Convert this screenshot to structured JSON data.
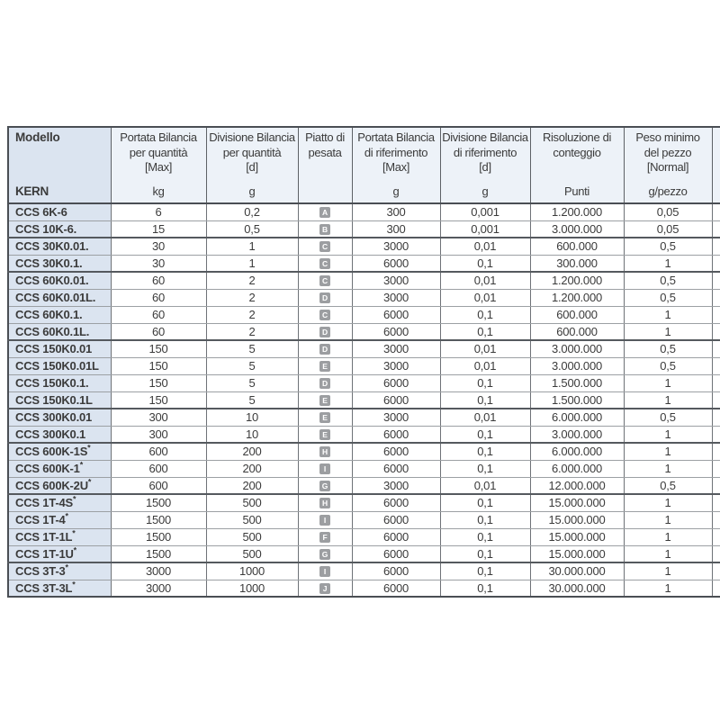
{
  "table": {
    "columns": [
      {
        "key": "modello",
        "title_lines": [
          "Modello"
        ],
        "unit": "KERN"
      },
      {
        "key": "portata-quantita",
        "title_lines": [
          "Portata Bilancia",
          "per quantità",
          "[Max]"
        ],
        "unit": "kg"
      },
      {
        "key": "divisione-quantita",
        "title_lines": [
          "Divisione Bilancia",
          "per quantità",
          "[d]"
        ],
        "unit": "g"
      },
      {
        "key": "piatto-pesata",
        "title_lines": [
          "Piatto di",
          "pesata"
        ],
        "unit": ""
      },
      {
        "key": "portata-riferimento",
        "title_lines": [
          "Portata Bilancia",
          "di riferimento",
          "[Max]"
        ],
        "unit": "g"
      },
      {
        "key": "divisione-riferimento",
        "title_lines": [
          "Divisione Bilancia",
          "di riferimento",
          "[d]"
        ],
        "unit": "g"
      },
      {
        "key": "risoluzione-conteggio",
        "title_lines": [
          "Risoluzione di",
          "conteggio"
        ],
        "unit": "Punti"
      },
      {
        "key": "peso-minimo",
        "title_lines": [
          "Peso minimo",
          "del pezzo",
          "[Normal]"
        ],
        "unit": "g/pezzo"
      }
    ],
    "rows": [
      {
        "model": "CCS 6K-6",
        "capacity_kg": "6",
        "division_g": "0,2",
        "plate": "A",
        "ref_capacity_g": "300",
        "ref_division_g": "0,001",
        "counting_resolution": "1.200.000",
        "min_piece_weight": "0,05",
        "group_end": false
      },
      {
        "model": "CCS 10K-6.",
        "capacity_kg": "15",
        "division_g": "0,5",
        "plate": "B",
        "ref_capacity_g": "300",
        "ref_division_g": "0,001",
        "counting_resolution": "3.000.000",
        "min_piece_weight": "0,05",
        "group_end": true
      },
      {
        "model": "CCS 30K0.01.",
        "capacity_kg": "30",
        "division_g": "1",
        "plate": "C",
        "ref_capacity_g": "3000",
        "ref_division_g": "0,01",
        "counting_resolution": "600.000",
        "min_piece_weight": "0,5",
        "group_end": false
      },
      {
        "model": "CCS 30K0.1.",
        "capacity_kg": "30",
        "division_g": "1",
        "plate": "C",
        "ref_capacity_g": "6000",
        "ref_division_g": "0,1",
        "counting_resolution": "300.000",
        "min_piece_weight": "1",
        "group_end": true
      },
      {
        "model": "CCS 60K0.01.",
        "capacity_kg": "60",
        "division_g": "2",
        "plate": "C",
        "ref_capacity_g": "3000",
        "ref_division_g": "0,01",
        "counting_resolution": "1.200.000",
        "min_piece_weight": "0,5",
        "group_end": false
      },
      {
        "model": "CCS 60K0.01L.",
        "capacity_kg": "60",
        "division_g": "2",
        "plate": "D",
        "ref_capacity_g": "3000",
        "ref_division_g": "0,01",
        "counting_resolution": "1.200.000",
        "min_piece_weight": "0,5",
        "group_end": false
      },
      {
        "model": "CCS 60K0.1.",
        "capacity_kg": "60",
        "division_g": "2",
        "plate": "C",
        "ref_capacity_g": "6000",
        "ref_division_g": "0,1",
        "counting_resolution": "600.000",
        "min_piece_weight": "1",
        "group_end": false
      },
      {
        "model": "CCS 60K0.1L.",
        "capacity_kg": "60",
        "division_g": "2",
        "plate": "D",
        "ref_capacity_g": "6000",
        "ref_division_g": "0,1",
        "counting_resolution": "600.000",
        "min_piece_weight": "1",
        "group_end": true
      },
      {
        "model": "CCS 150K0.01",
        "capacity_kg": "150",
        "division_g": "5",
        "plate": "D",
        "ref_capacity_g": "3000",
        "ref_division_g": "0,01",
        "counting_resolution": "3.000.000",
        "min_piece_weight": "0,5",
        "group_end": false
      },
      {
        "model": "CCS 150K0.01L",
        "capacity_kg": "150",
        "division_g": "5",
        "plate": "E",
        "ref_capacity_g": "3000",
        "ref_division_g": "0,01",
        "counting_resolution": "3.000.000",
        "min_piece_weight": "0,5",
        "group_end": false
      },
      {
        "model": "CCS 150K0.1.",
        "capacity_kg": "150",
        "division_g": "5",
        "plate": "D",
        "ref_capacity_g": "6000",
        "ref_division_g": "0,1",
        "counting_resolution": "1.500.000",
        "min_piece_weight": "1",
        "group_end": false
      },
      {
        "model": "CCS 150K0.1L",
        "capacity_kg": "150",
        "division_g": "5",
        "plate": "E",
        "ref_capacity_g": "6000",
        "ref_division_g": "0,1",
        "counting_resolution": "1.500.000",
        "min_piece_weight": "1",
        "group_end": true
      },
      {
        "model": "CCS 300K0.01",
        "capacity_kg": "300",
        "division_g": "10",
        "plate": "E",
        "ref_capacity_g": "3000",
        "ref_division_g": "0,01",
        "counting_resolution": "6.000.000",
        "min_piece_weight": "0,5",
        "group_end": false
      },
      {
        "model": "CCS 300K0.1",
        "capacity_kg": "300",
        "division_g": "10",
        "plate": "E",
        "ref_capacity_g": "6000",
        "ref_division_g": "0,1",
        "counting_resolution": "3.000.000",
        "min_piece_weight": "1",
        "group_end": true
      },
      {
        "model": "CCS 600K-1S*",
        "capacity_kg": "600",
        "division_g": "200",
        "plate": "H",
        "ref_capacity_g": "6000",
        "ref_division_g": "0,1",
        "counting_resolution": "6.000.000",
        "min_piece_weight": "1",
        "group_end": false
      },
      {
        "model": "CCS 600K-1*",
        "capacity_kg": "600",
        "division_g": "200",
        "plate": "I",
        "ref_capacity_g": "6000",
        "ref_division_g": "0,1",
        "counting_resolution": "6.000.000",
        "min_piece_weight": "1",
        "group_end": false
      },
      {
        "model": "CCS 600K-2U*",
        "capacity_kg": "600",
        "division_g": "200",
        "plate": "G",
        "ref_capacity_g": "3000",
        "ref_division_g": "0,01",
        "counting_resolution": "12.000.000",
        "min_piece_weight": "0,5",
        "group_end": true
      },
      {
        "model": "CCS 1T-4S*",
        "capacity_kg": "1500",
        "division_g": "500",
        "plate": "H",
        "ref_capacity_g": "6000",
        "ref_division_g": "0,1",
        "counting_resolution": "15.000.000",
        "min_piece_weight": "1",
        "group_end": false
      },
      {
        "model": "CCS 1T-4*",
        "capacity_kg": "1500",
        "division_g": "500",
        "plate": "I",
        "ref_capacity_g": "6000",
        "ref_division_g": "0,1",
        "counting_resolution": "15.000.000",
        "min_piece_weight": "1",
        "group_end": false
      },
      {
        "model": "CCS 1T-1L*",
        "capacity_kg": "1500",
        "division_g": "500",
        "plate": "F",
        "ref_capacity_g": "6000",
        "ref_division_g": "0,1",
        "counting_resolution": "15.000.000",
        "min_piece_weight": "1",
        "group_end": false
      },
      {
        "model": "CCS 1T-1U*",
        "capacity_kg": "1500",
        "division_g": "500",
        "plate": "G",
        "ref_capacity_g": "6000",
        "ref_division_g": "0,1",
        "counting_resolution": "15.000.000",
        "min_piece_weight": "1",
        "group_end": true
      },
      {
        "model": "CCS 3T-3*",
        "capacity_kg": "3000",
        "division_g": "1000",
        "plate": "I",
        "ref_capacity_g": "6000",
        "ref_division_g": "0,1",
        "counting_resolution": "30.000.000",
        "min_piece_weight": "1",
        "group_end": false
      },
      {
        "model": "CCS 3T-3L*",
        "capacity_kg": "3000",
        "division_g": "1000",
        "plate": "J",
        "ref_capacity_g": "6000",
        "ref_division_g": "0,1",
        "counting_resolution": "30.000.000",
        "min_piece_weight": "1",
        "group_end": false
      }
    ]
  },
  "colors": {
    "page_background": "#ffffff",
    "model_column_background": "#dbe4f0",
    "header_background": "#edf2f8",
    "plate_badge_background": "#9c9ea1",
    "plate_badge_text": "#ffffff",
    "border_dark": "#4a4e54",
    "border_light": "#9ca0a4",
    "text": "#3b3b3b"
  }
}
